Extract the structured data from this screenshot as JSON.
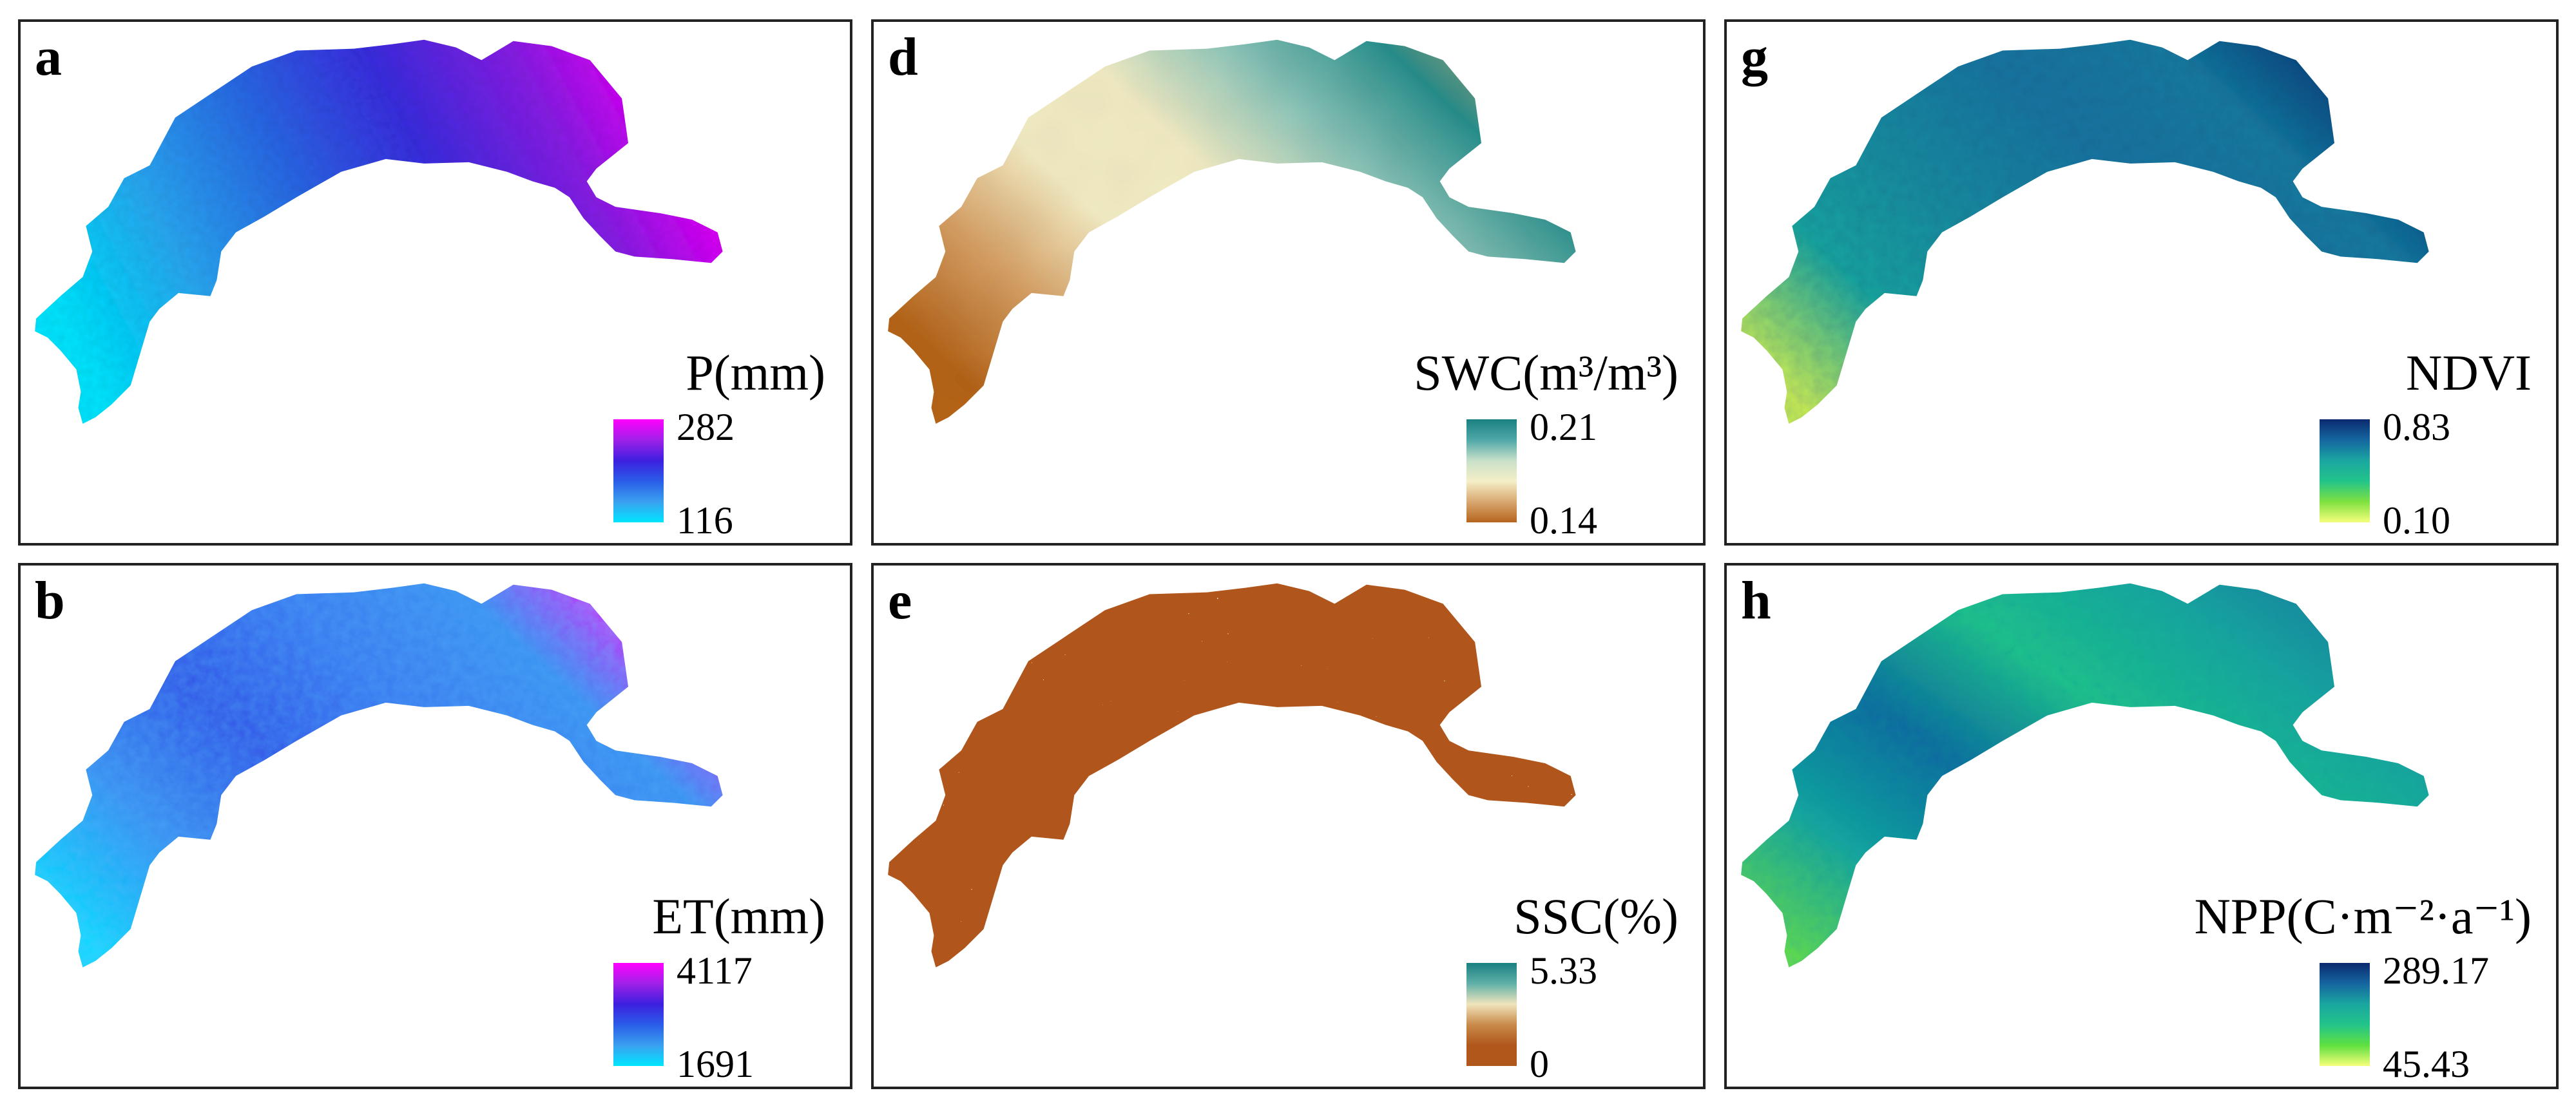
{
  "figure": {
    "panels": [
      {
        "id": "a",
        "letter": "a",
        "variable": "P(mm)",
        "legend_max": "282",
        "legend_min": "116",
        "colors": [
          "#00e5ff",
          "#3aa0f0",
          "#2a5de8",
          "#3d1fe0",
          "#a020e8",
          "#ff00ff"
        ]
      },
      {
        "id": "d",
        "letter": "d",
        "variable": "SWC(m³/m³)",
        "legend_max": "0.21",
        "legend_min": "0.14",
        "colors": [
          "#b5651d",
          "#d9a870",
          "#f5efc8",
          "#c8e0c8",
          "#4fa8a8",
          "#1a7f80"
        ]
      },
      {
        "id": "g",
        "letter": "g",
        "variable": "NDVI",
        "legend_max": "0.83",
        "legend_min": "0.10",
        "colors": [
          "#f5ff7a",
          "#7fe040",
          "#22c48a",
          "#1aa6a0",
          "#1566a0",
          "#0b2a6e"
        ]
      },
      {
        "id": "b",
        "letter": "b",
        "variable": "ET(mm)",
        "legend_max": "4117",
        "legend_min": "1691",
        "colors": [
          "#00e5ff",
          "#3aa0f0",
          "#2a5de8",
          "#3d1fe0",
          "#a020e8",
          "#ff00ff"
        ]
      },
      {
        "id": "e",
        "letter": "e",
        "variable": "SSC(%)",
        "legend_max": "5.33",
        "legend_min": "0",
        "colors": [
          "#b0571c",
          "#b0571c",
          "#c98a4a",
          "#f0e4bc",
          "#5fb0a8",
          "#1a7f80"
        ]
      },
      {
        "id": "h",
        "letter": "h",
        "variable": "NPP(C·m⁻²·a⁻¹)",
        "legend_max": "289.17",
        "legend_min": "45.43",
        "colors": [
          "#f5ff7a",
          "#5fe040",
          "#22c48a",
          "#1aa6a0",
          "#1566a0",
          "#0b2a6e"
        ]
      }
    ]
  }
}
